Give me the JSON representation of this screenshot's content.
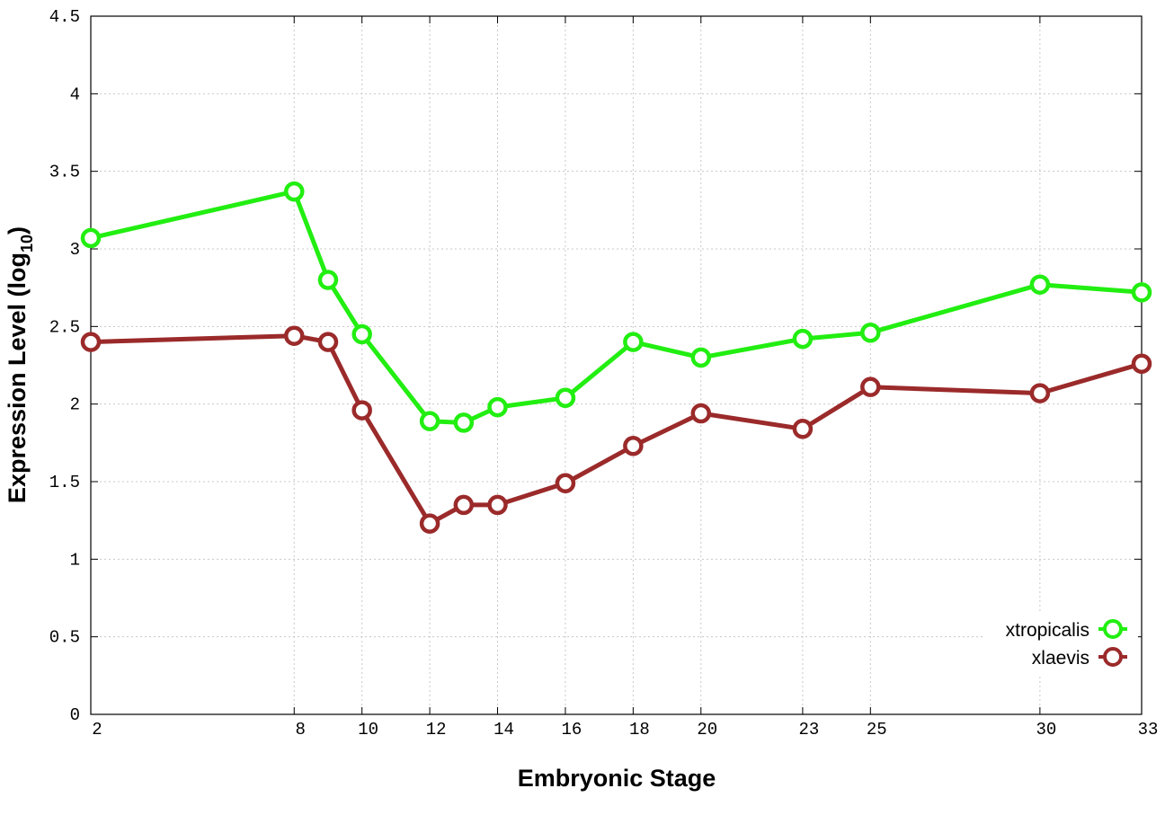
{
  "chart_data": {
    "type": "line",
    "xlabel": "Embryonic Stage",
    "ylabel_main": "Expression Level (log",
    "ylabel_sub": "10",
    "ylabel_close": ")",
    "x": [
      2,
      8,
      9,
      10,
      12,
      13,
      14,
      16,
      18,
      20,
      23,
      25,
      30,
      33
    ],
    "x_tick_labels": [
      "2",
      "8",
      "10",
      "12",
      "14",
      "16",
      "18",
      "20",
      "23",
      "25",
      "30",
      "33"
    ],
    "x_tick_values": [
      2,
      8,
      10,
      12,
      14,
      16,
      18,
      20,
      23,
      25,
      30,
      33
    ],
    "ylim": [
      0,
      4.5
    ],
    "y_ticks": [
      0,
      0.5,
      1,
      1.5,
      2,
      2.5,
      3,
      3.5,
      4,
      4.5
    ],
    "y_tick_labels": [
      "0",
      "0.5",
      "1",
      "1.5",
      "2",
      "2.5",
      "3",
      "3.5",
      "4",
      "4.5"
    ],
    "grid": true,
    "legend_position": "bottom-right",
    "series": [
      {
        "name": "xtropicalis",
        "color": "#22ee11",
        "values": [
          3.07,
          3.37,
          2.8,
          2.45,
          1.89,
          1.88,
          1.98,
          2.04,
          2.4,
          2.3,
          2.42,
          2.46,
          2.77,
          2.72
        ]
      },
      {
        "name": "xlaevis",
        "color": "#9b2a2a",
        "values": [
          2.4,
          2.44,
          2.4,
          1.96,
          1.23,
          1.35,
          1.35,
          1.49,
          1.73,
          1.94,
          1.84,
          2.11,
          2.07,
          2.26
        ]
      }
    ]
  }
}
